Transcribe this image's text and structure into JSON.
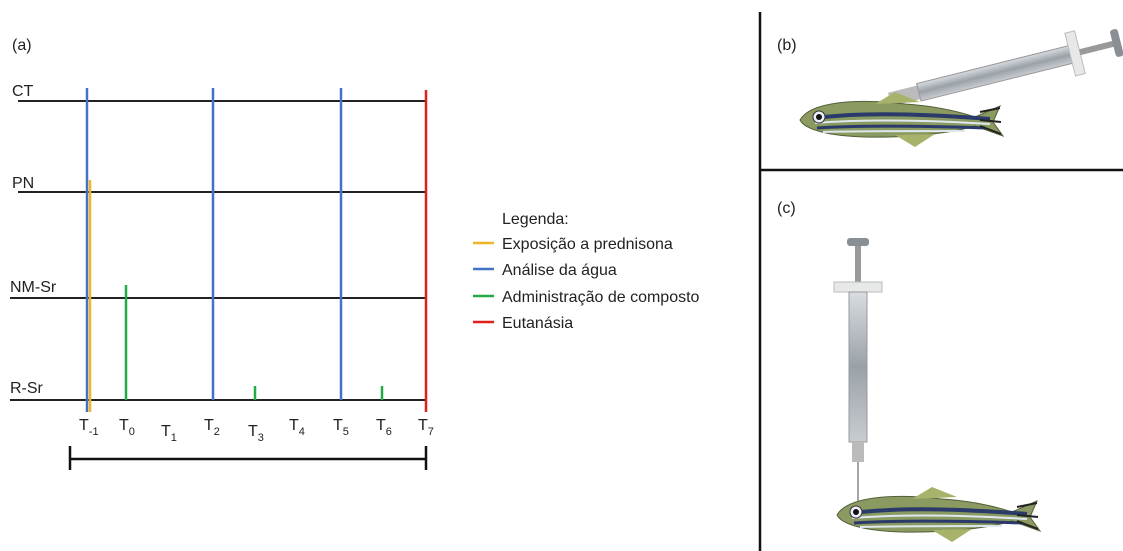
{
  "panel_a": {
    "label": "(a)",
    "rows": [
      "CT",
      "PN",
      "NM-Sr",
      "R-Sr"
    ],
    "ticks": [
      {
        "base": "T",
        "sub": "-1"
      },
      {
        "base": "T",
        "sub": "0"
      },
      {
        "base": "T",
        "sub": "1"
      },
      {
        "base": "T",
        "sub": "2"
      },
      {
        "base": "T",
        "sub": "3"
      },
      {
        "base": "T",
        "sub": "4"
      },
      {
        "base": "T",
        "sub": "5"
      },
      {
        "base": "T",
        "sub": "6"
      },
      {
        "base": "T",
        "sub": "7"
      }
    ]
  },
  "legend": {
    "title": "Legenda:",
    "items": [
      "Exposição a prednisona",
      "Análise da água",
      "Administração de composto",
      "Eutanásia"
    ]
  },
  "panel_b": {
    "label": "(b)"
  },
  "panel_c": {
    "label": "(c)"
  }
}
